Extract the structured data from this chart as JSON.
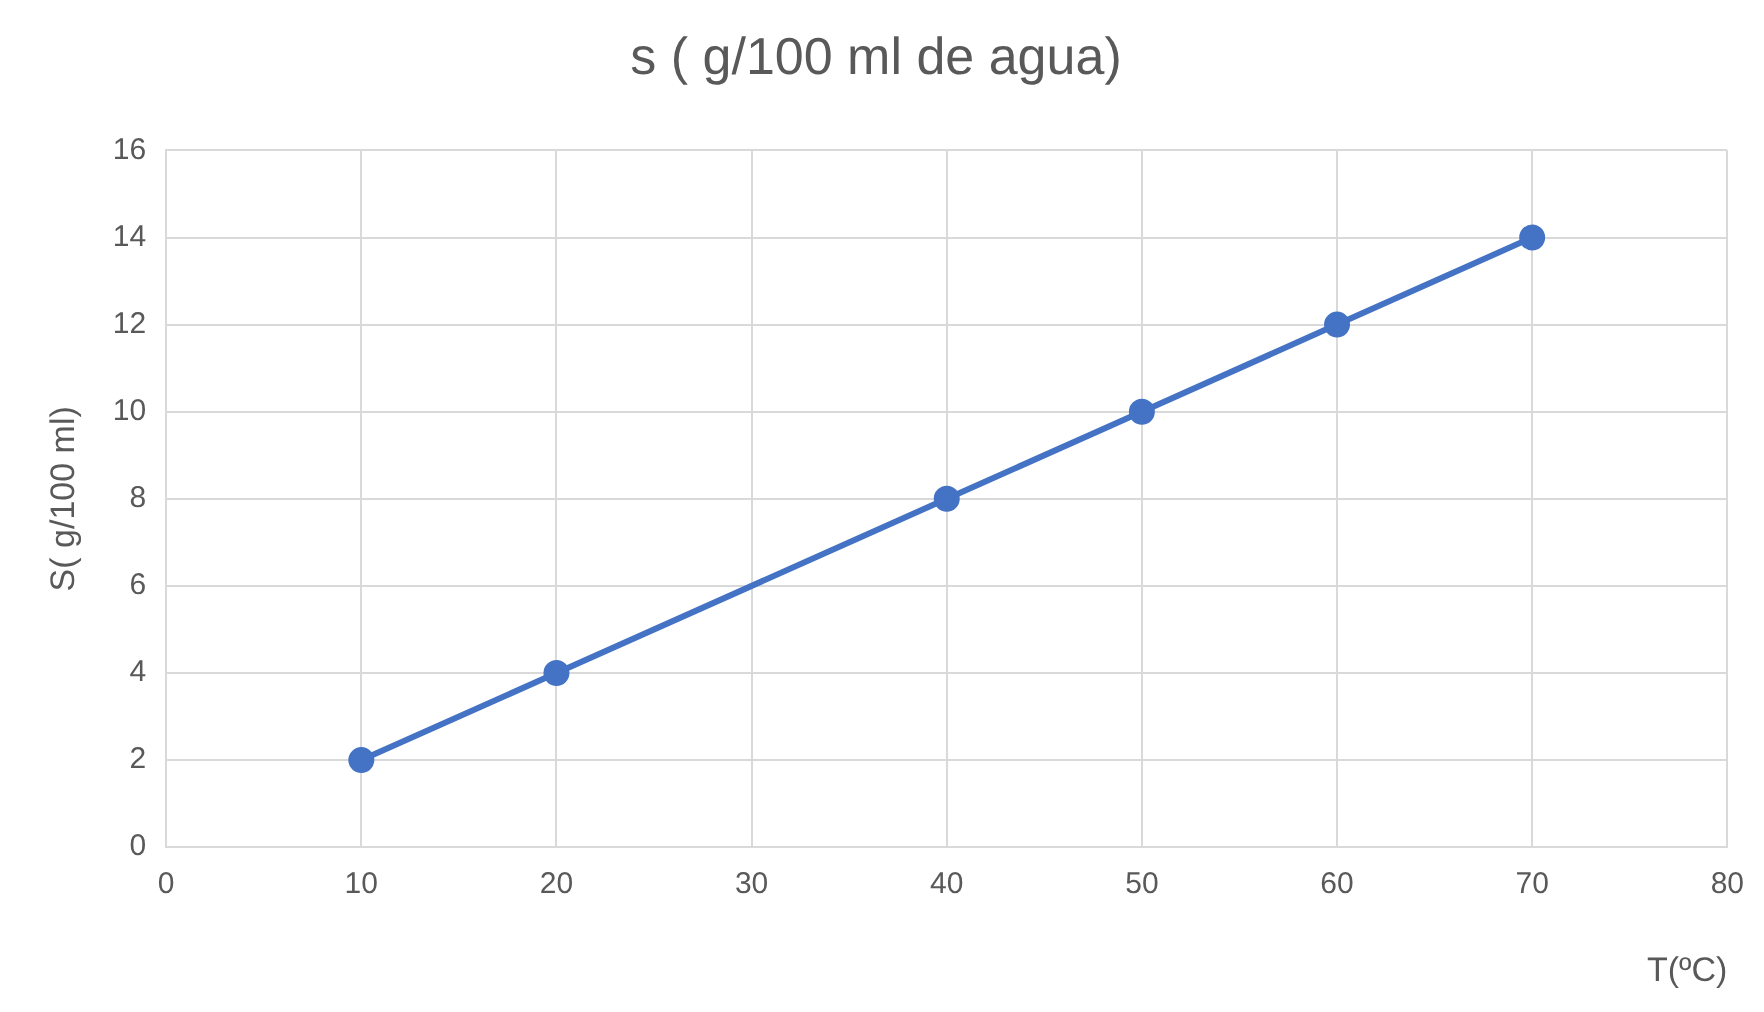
{
  "chart_data": {
    "type": "line",
    "title": "s ( g/100 ml de agua)",
    "xlabel": "T(ºC)",
    "ylabel": "S( g/100 ml)",
    "x": [
      10,
      20,
      40,
      50,
      60,
      70
    ],
    "series": [
      {
        "color": "#4472c4",
        "values": [
          2,
          4,
          8,
          10,
          12,
          14
        ]
      }
    ],
    "xlim": [
      0,
      80
    ],
    "xticks": [
      0,
      10,
      20,
      30,
      40,
      50,
      60,
      70,
      80
    ],
    "ylim": [
      0,
      16
    ],
    "yticks": [
      0,
      2,
      4,
      6,
      8,
      10,
      12,
      14,
      16
    ],
    "grid": true,
    "legend": false,
    "marker": "circle",
    "line_style": "solid"
  }
}
